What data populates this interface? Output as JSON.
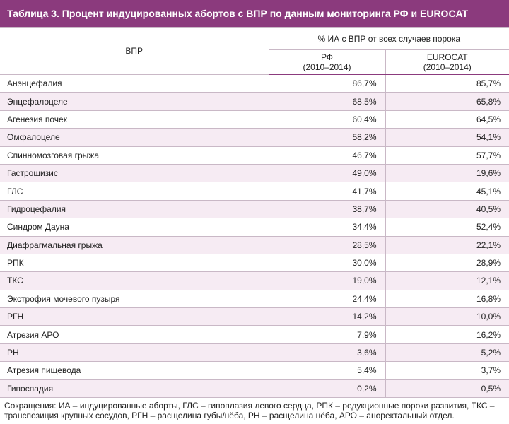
{
  "header": {
    "title": "Таблица 3. Процент индуцированных абортов с ВПР по данным мониторинга РФ и EUROCAT"
  },
  "table": {
    "row_header": "ВПР",
    "group_header": "% ИА с ВПР от всех случаев порока",
    "columns": [
      {
        "name": "РФ",
        "period": "(2010–2014)"
      },
      {
        "name": "EUROCAT",
        "period": "(2010–2014)"
      }
    ],
    "rows": [
      [
        "Анэнцефалия",
        "86,7%",
        "85,7%"
      ],
      [
        "Энцефалоцеле",
        "68,5%",
        "65,8%"
      ],
      [
        "Агенезия почек",
        "60,4%",
        "64,5%"
      ],
      [
        "Омфалоцеле",
        "58,2%",
        "54,1%"
      ],
      [
        "Спинномозговая грыжа",
        "46,7%",
        "57,7%"
      ],
      [
        "Гастрошизис",
        "49,0%",
        "19,6%"
      ],
      [
        "ГЛС",
        "41,7%",
        "45,1%"
      ],
      [
        "Гидроцефалия",
        "38,7%",
        "40,5%"
      ],
      [
        "Синдром Дауна",
        "34,4%",
        "52,4%"
      ],
      [
        "Диафрагмальная грыжа",
        "28,5%",
        "22,1%"
      ],
      [
        "РПК",
        "30,0%",
        "28,9%"
      ],
      [
        "ТКС",
        "19,0%",
        "12,1%"
      ],
      [
        "Экстрофия мочевого пузыря",
        "24,4%",
        "16,8%"
      ],
      [
        "РГН",
        "14,2%",
        "10,0%"
      ],
      [
        "Атрезия АРО",
        "7,9%",
        "16,2%"
      ],
      [
        "РН",
        "3,6%",
        "5,2%"
      ],
      [
        "Атрезия пищевода",
        "5,4%",
        "3,7%"
      ],
      [
        "Гипоспадия",
        "0,2%",
        "0,5%"
      ]
    ]
  },
  "footnote": "Сокращения: ИА – индуцированные аборты, ГЛС – гипоплазия левого сердца, РПК – редукционные пороки развития, ТКС – транспозиция крупных сосудов, РГН – расщелина губы/нёба, РН – расщелина нёба, АРО – аноректальный отдел."
}
